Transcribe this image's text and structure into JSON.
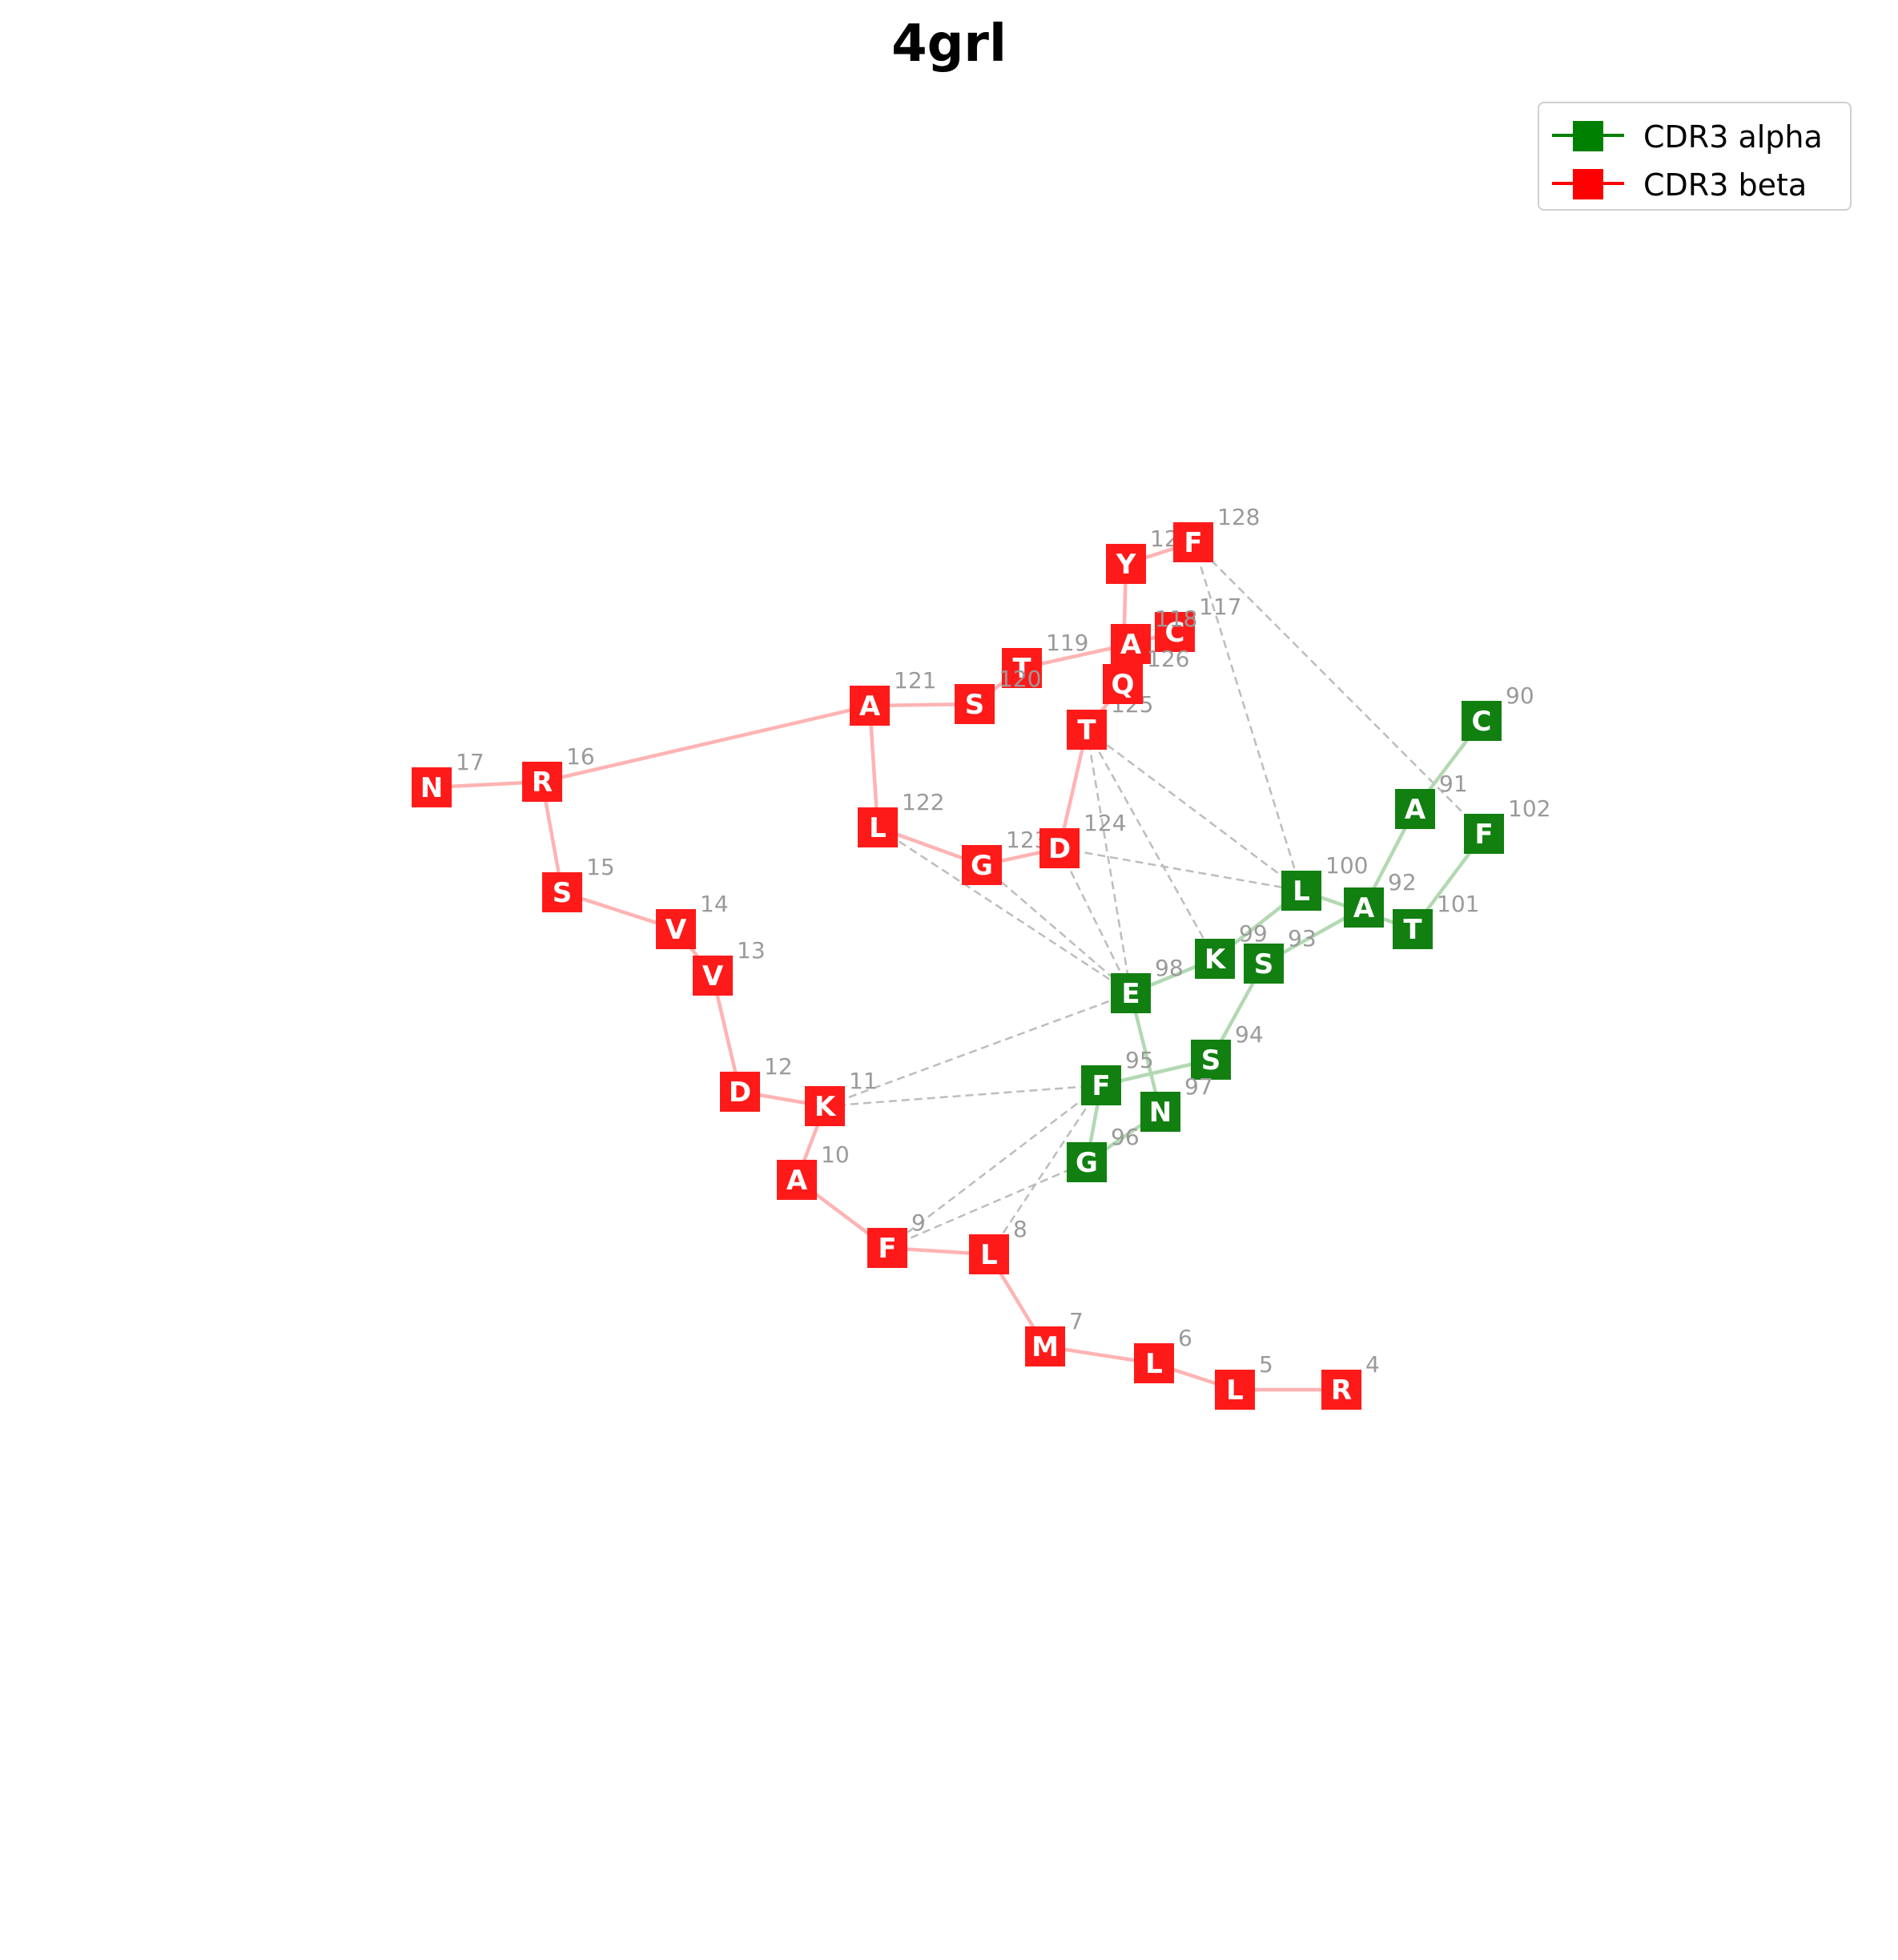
{
  "title": "4grl",
  "legend": {
    "alpha_label": "CDR3 alpha",
    "beta_label": "CDR3 beta",
    "alpha_color": "#008000",
    "beta_color": "#ff0000"
  },
  "colors": {
    "alpha_node": "#118011",
    "beta_node": "#ff1a1a",
    "alpha_edge": "#b3d9b3",
    "beta_edge": "#ffb3b3",
    "contact_edge": "#bdbdbd",
    "index_label": "#9a9a9a",
    "node_text": "#ffffff"
  },
  "nodes": [
    {
      "id": "a90",
      "chain": "alpha",
      "aa": "C",
      "num": "90"
    },
    {
      "id": "a91",
      "chain": "alpha",
      "aa": "A",
      "num": "91"
    },
    {
      "id": "a92",
      "chain": "alpha",
      "aa": "A",
      "num": "92"
    },
    {
      "id": "a93",
      "chain": "alpha",
      "aa": "S",
      "num": "93"
    },
    {
      "id": "a94",
      "chain": "alpha",
      "aa": "S",
      "num": "94"
    },
    {
      "id": "a95",
      "chain": "alpha",
      "aa": "F",
      "num": "95"
    },
    {
      "id": "a96",
      "chain": "alpha",
      "aa": "G",
      "num": "96"
    },
    {
      "id": "a97",
      "chain": "alpha",
      "aa": "N",
      "num": "97"
    },
    {
      "id": "a98",
      "chain": "alpha",
      "aa": "E",
      "num": "98"
    },
    {
      "id": "a99",
      "chain": "alpha",
      "aa": "K",
      "num": "99"
    },
    {
      "id": "a100",
      "chain": "alpha",
      "aa": "L",
      "num": "100"
    },
    {
      "id": "a101",
      "chain": "alpha",
      "aa": "T",
      "num": "101"
    },
    {
      "id": "a102",
      "chain": "alpha",
      "aa": "F",
      "num": "102"
    },
    {
      "id": "b4",
      "chain": "beta",
      "aa": "R",
      "num": "4"
    },
    {
      "id": "b5",
      "chain": "beta",
      "aa": "L",
      "num": "5"
    },
    {
      "id": "b6",
      "chain": "beta",
      "aa": "L",
      "num": "6"
    },
    {
      "id": "b7",
      "chain": "beta",
      "aa": "M",
      "num": "7"
    },
    {
      "id": "b8",
      "chain": "beta",
      "aa": "L",
      "num": "8"
    },
    {
      "id": "b9",
      "chain": "beta",
      "aa": "F",
      "num": "9"
    },
    {
      "id": "b10",
      "chain": "beta",
      "aa": "A",
      "num": "10"
    },
    {
      "id": "b11",
      "chain": "beta",
      "aa": "K",
      "num": "11"
    },
    {
      "id": "b12",
      "chain": "beta",
      "aa": "D",
      "num": "12"
    },
    {
      "id": "b13",
      "chain": "beta",
      "aa": "V",
      "num": "13"
    },
    {
      "id": "b14",
      "chain": "beta",
      "aa": "V",
      "num": "14"
    },
    {
      "id": "b15",
      "chain": "beta",
      "aa": "S",
      "num": "15"
    },
    {
      "id": "b16",
      "chain": "beta",
      "aa": "R",
      "num": "16"
    },
    {
      "id": "b17",
      "chain": "beta",
      "aa": "N",
      "num": "17"
    },
    {
      "id": "b117",
      "chain": "beta",
      "aa": "C",
      "num": "117"
    },
    {
      "id": "b118",
      "chain": "beta",
      "aa": "A",
      "num": "118"
    },
    {
      "id": "b119",
      "chain": "beta",
      "aa": "T",
      "num": "119"
    },
    {
      "id": "b120",
      "chain": "beta",
      "aa": "S",
      "num": "120"
    },
    {
      "id": "b121",
      "chain": "beta",
      "aa": "A",
      "num": "121"
    },
    {
      "id": "b122",
      "chain": "beta",
      "aa": "L",
      "num": "122"
    },
    {
      "id": "b123",
      "chain": "beta",
      "aa": "G",
      "num": "123"
    },
    {
      "id": "b124",
      "chain": "beta",
      "aa": "D",
      "num": "124"
    },
    {
      "id": "b125",
      "chain": "beta",
      "aa": "T",
      "num": "125"
    },
    {
      "id": "b126",
      "chain": "beta",
      "aa": "Q",
      "num": "126"
    },
    {
      "id": "b127",
      "chain": "beta",
      "aa": "Y",
      "num": "127"
    },
    {
      "id": "b128",
      "chain": "beta",
      "aa": "F",
      "num": "128"
    }
  ],
  "backbone_edges": [
    [
      "a90",
      "a91"
    ],
    [
      "a91",
      "a92"
    ],
    [
      "a92",
      "a93"
    ],
    [
      "a93",
      "a94"
    ],
    [
      "a94",
      "a95"
    ],
    [
      "a95",
      "a96"
    ],
    [
      "a96",
      "a97"
    ],
    [
      "a97",
      "a98"
    ],
    [
      "a98",
      "a99"
    ],
    [
      "a99",
      "a100"
    ],
    [
      "a100",
      "a101"
    ],
    [
      "a101",
      "a102"
    ],
    [
      "b4",
      "b5"
    ],
    [
      "b5",
      "b6"
    ],
    [
      "b6",
      "b7"
    ],
    [
      "b7",
      "b8"
    ],
    [
      "b8",
      "b9"
    ],
    [
      "b9",
      "b10"
    ],
    [
      "b10",
      "b11"
    ],
    [
      "b11",
      "b12"
    ],
    [
      "b12",
      "b13"
    ],
    [
      "b13",
      "b14"
    ],
    [
      "b14",
      "b15"
    ],
    [
      "b15",
      "b16"
    ],
    [
      "b16",
      "b17"
    ],
    [
      "b16",
      "b121"
    ],
    [
      "b117",
      "b118"
    ],
    [
      "b118",
      "b119"
    ],
    [
      "b119",
      "b120"
    ],
    [
      "b120",
      "b121"
    ],
    [
      "b121",
      "b122"
    ],
    [
      "b122",
      "b123"
    ],
    [
      "b123",
      "b124"
    ],
    [
      "b124",
      "b125"
    ],
    [
      "b125",
      "b126"
    ],
    [
      "b126",
      "b127"
    ],
    [
      "b127",
      "b128"
    ]
  ],
  "contact_edges": [
    [
      "b128",
      "a100"
    ],
    [
      "b128",
      "a102"
    ],
    [
      "b125",
      "a100"
    ],
    [
      "b125",
      "a99"
    ],
    [
      "b125",
      "a98"
    ],
    [
      "b124",
      "a100"
    ],
    [
      "b124",
      "a98"
    ],
    [
      "b123",
      "a98"
    ],
    [
      "b122",
      "a98"
    ],
    [
      "b11",
      "a98"
    ],
    [
      "b11",
      "a95"
    ],
    [
      "b9",
      "a95"
    ],
    [
      "b9",
      "a96"
    ],
    [
      "b8",
      "a95"
    ]
  ]
}
